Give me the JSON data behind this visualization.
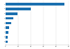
{
  "categories": [
    "1",
    "2",
    "3",
    "4",
    "5",
    "6",
    "7",
    "8",
    "9"
  ],
  "values": [
    46.5,
    20.0,
    9.5,
    6.0,
    4.2,
    3.0,
    2.4,
    1.9,
    1.6
  ],
  "bar_color": "#1a6faf",
  "background_color": "#ffffff",
  "grid_color": "#dddddd",
  "xlim": [
    0,
    50
  ],
  "bar_height": 0.55,
  "figsize": [
    1.0,
    0.71
  ],
  "dpi": 100
}
